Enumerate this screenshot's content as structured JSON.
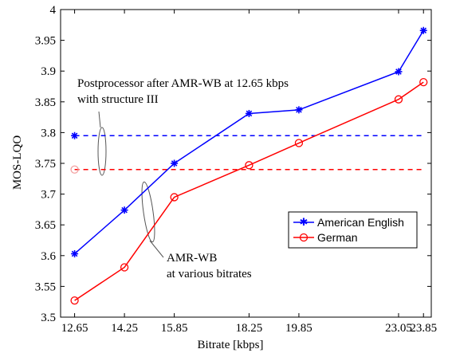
{
  "chart_data": {
    "type": "line",
    "xlabel": "Bitrate [kbps]",
    "ylabel": "MOS-LQO",
    "xlim": [
      12.2,
      24.1
    ],
    "ylim": [
      3.5,
      4.0
    ],
    "x_ticks": [
      12.65,
      14.25,
      15.85,
      18.25,
      19.85,
      23.05,
      23.85
    ],
    "x_tick_labels": [
      "12.65",
      "14.25",
      "15.85",
      "18.25",
      "19.85",
      "23.05",
      "23.85"
    ],
    "y_ticks": [
      3.5,
      3.55,
      3.6,
      3.65,
      3.7,
      3.75,
      3.8,
      3.85,
      3.9,
      3.95,
      4.0
    ],
    "y_tick_labels": [
      "3.5",
      "3.55",
      "3.6",
      "3.65",
      "3.7",
      "3.75",
      "3.8",
      "3.85",
      "3.9",
      "3.95",
      "4"
    ],
    "grid": false,
    "legend_position": "lower-right",
    "series": [
      {
        "name": "American English",
        "color": "#0000ff",
        "marker": "star",
        "x": [
          12.65,
          14.25,
          15.85,
          18.25,
          19.85,
          23.05,
          23.85
        ],
        "values": [
          3.603,
          3.674,
          3.75,
          3.831,
          3.837,
          3.899,
          3.966
        ]
      },
      {
        "name": "German",
        "color": "#ff0000",
        "marker": "circle",
        "x": [
          12.65,
          14.25,
          15.85,
          18.25,
          19.85,
          23.05,
          23.85
        ],
        "values": [
          3.527,
          3.581,
          3.695,
          3.747,
          3.783,
          3.854,
          3.882
        ]
      }
    ],
    "reference_lines": [
      {
        "series": "American English",
        "color": "#0000ff",
        "y": 3.795,
        "style": "dashed",
        "marker": "star"
      },
      {
        "series": "German",
        "color": "#ff0000",
        "y": 3.74,
        "style": "dashed",
        "marker": "circle"
      }
    ],
    "annotations": [
      {
        "id": "postprocessor",
        "lines": [
          "Postprocessor after AMR-WB at 12.65 kbps",
          "with structure III"
        ]
      },
      {
        "id": "amrwb",
        "lines": [
          "AMR-WB",
          "at various bitrates"
        ]
      }
    ]
  }
}
